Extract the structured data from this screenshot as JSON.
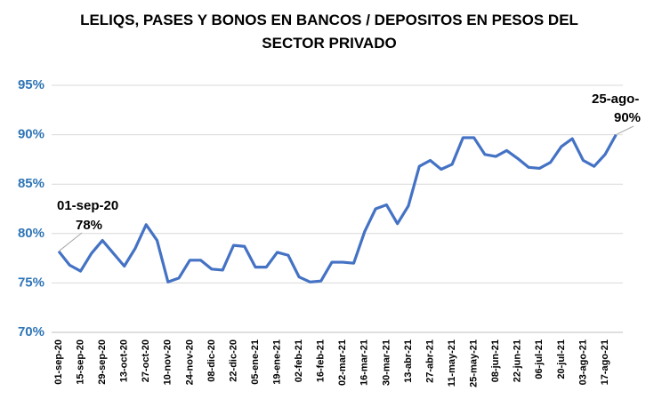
{
  "chart_data": {
    "type": "line",
    "title": "LELIQS, PASES Y BONOS EN BANCOS / DEPOSITOS EN PESOS DEL SECTOR PRIVADO",
    "categories": [
      "01-sep-20",
      null,
      "15-sep-20",
      null,
      "29-sep-20",
      null,
      "13-oct-20",
      null,
      "27-oct-20",
      null,
      "10-nov-20",
      null,
      "24-nov-20",
      null,
      "08-dic-20",
      null,
      "22-dic-20",
      null,
      "05-ene-21",
      null,
      "19-ene-21",
      null,
      "02-feb-21",
      null,
      "16-feb-21",
      null,
      "02-mar-21",
      null,
      "16-mar-21",
      null,
      "30-mar-21",
      null,
      "13-abr-21",
      null,
      "27-abr-21",
      null,
      "11-may-21",
      null,
      "25-may-21",
      null,
      "08-jun-21",
      null,
      "22-jun-21",
      null,
      "06-jul-21",
      null,
      "20-jul-21",
      null,
      "03-ago-21",
      null,
      "17-ago-21",
      null
    ],
    "values": [
      78.2,
      76.8,
      76.2,
      78.0,
      79.3,
      78.0,
      76.7,
      78.5,
      80.9,
      79.3,
      75.1,
      75.5,
      77.3,
      77.3,
      76.4,
      76.3,
      78.8,
      78.7,
      76.6,
      76.6,
      78.1,
      77.8,
      75.6,
      75.1,
      75.2,
      77.1,
      77.1,
      77.0,
      80.2,
      82.5,
      82.9,
      81.0,
      82.8,
      86.8,
      87.4,
      86.5,
      87.0,
      89.7,
      89.7,
      88.0,
      87.8,
      88.4,
      87.6,
      86.7,
      86.6,
      87.2,
      88.8,
      89.6,
      87.4,
      86.8,
      88.0,
      90.0
    ],
    "color": "#4472c4",
    "ylim": [
      70,
      95
    ],
    "yticks": [
      {
        "value": 70,
        "label": "70%"
      },
      {
        "value": 75,
        "label": "75%"
      },
      {
        "value": 80,
        "label": "80%"
      },
      {
        "value": 85,
        "label": "85%"
      },
      {
        "value": 90,
        "label": "90%"
      },
      {
        "value": 95,
        "label": "95%"
      }
    ],
    "grid": true,
    "annotations": [
      {
        "lines": [
          "01-sep-20",
          "78%"
        ]
      },
      {
        "lines": [
          "25-ago-",
          "90%"
        ]
      }
    ]
  }
}
